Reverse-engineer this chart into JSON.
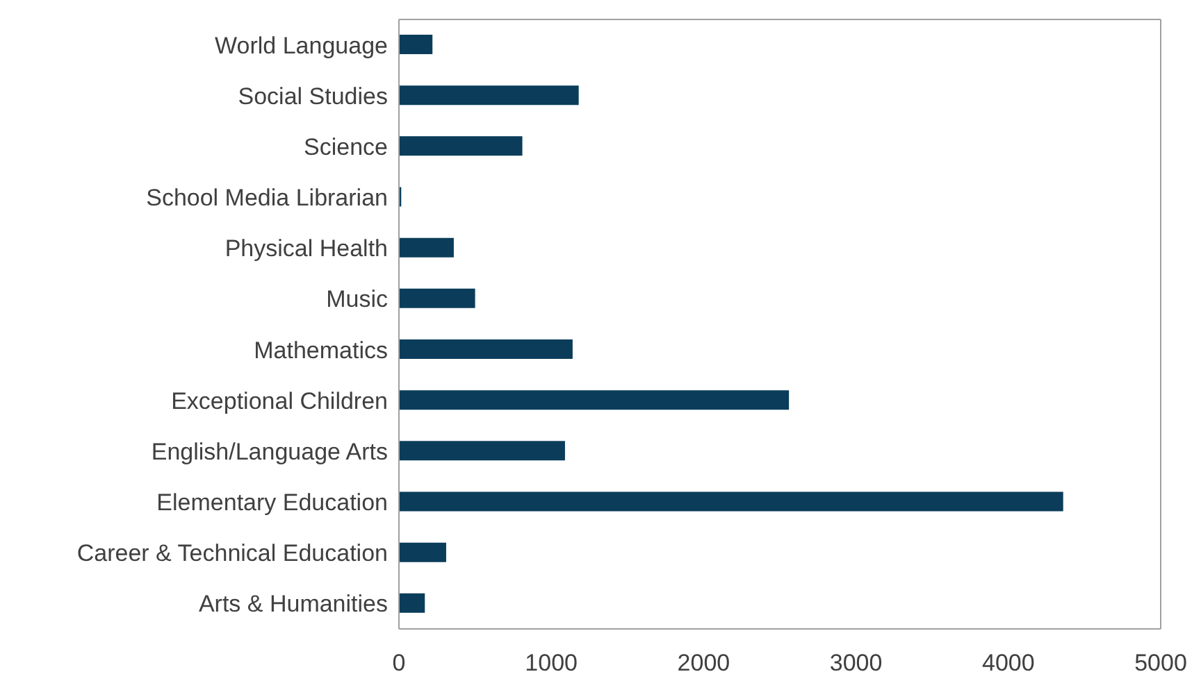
{
  "chart_data": {
    "type": "bar",
    "orientation": "horizontal",
    "categories": [
      "World Language",
      "Social Studies",
      "Science",
      "School Media Librarian",
      "Physical Health",
      "Music",
      "Mathematics",
      "Exceptional Children",
      "English/Language Arts",
      "Elementary Education",
      "Career & Technical Education",
      "Arts & Humanities"
    ],
    "values": [
      220,
      1180,
      810,
      15,
      360,
      500,
      1140,
      2560,
      1090,
      4360,
      310,
      170
    ],
    "color": "#0b3d5a",
    "xlim": [
      0,
      5000
    ],
    "xticks": [
      0,
      1000,
      2000,
      3000,
      4000,
      5000
    ],
    "grid": false,
    "legend": false
  }
}
